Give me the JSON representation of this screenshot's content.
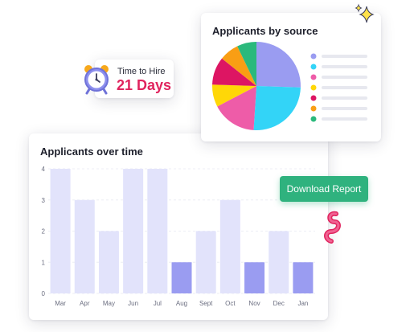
{
  "time_to_hire": {
    "label": "Time to Hire",
    "value": "21 Days"
  },
  "download_button": {
    "label": "Download Report"
  },
  "source_chart": {
    "title": "Applicants by source",
    "slices": [
      {
        "value": 25,
        "color": "#9a9cf1"
      },
      {
        "value": 25,
        "color": "#33d4f7"
      },
      {
        "value": 16,
        "color": "#ee5ca8"
      },
      {
        "value": 8,
        "color": "#ffd707"
      },
      {
        "value": 10,
        "color": "#dd1563"
      },
      {
        "value": 7,
        "color": "#f99e14"
      },
      {
        "value": 7,
        "color": "#2bb97c"
      }
    ]
  },
  "chart_data": {
    "type": "bar",
    "title": "Applicants over time",
    "categories": [
      "Mar",
      "Apr",
      "May",
      "Jun",
      "Jul",
      "Aug",
      "Sept",
      "Oct",
      "Nov",
      "Dec",
      "Jan"
    ],
    "values": [
      4,
      3,
      2,
      4,
      4,
      1,
      2,
      3,
      1,
      2,
      1
    ],
    "highlighted": [
      false,
      false,
      false,
      false,
      false,
      true,
      false,
      false,
      true,
      false,
      true
    ],
    "ylim": [
      0,
      4
    ],
    "yticks": [
      0,
      1,
      2,
      3,
      4
    ],
    "colors": {
      "bar": "#e2e3fb",
      "highlight": "#9a9cf1"
    },
    "grid": true
  }
}
